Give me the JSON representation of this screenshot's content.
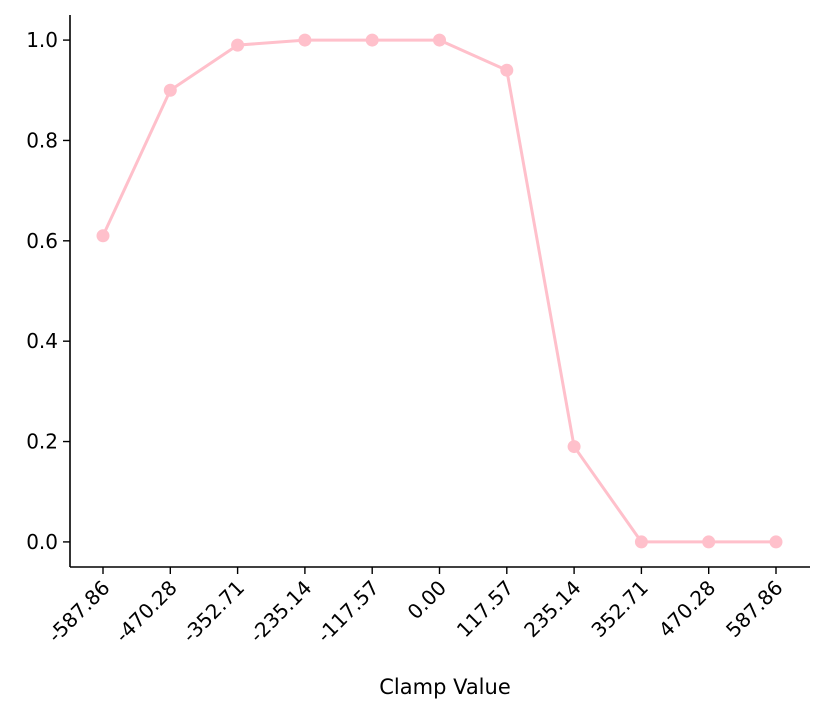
{
  "chart_data": {
    "type": "line",
    "title": "",
    "xlabel": "Clamp Value",
    "ylabel": "",
    "x": [
      "-587.86",
      "-470.28",
      "-352.71",
      "-235.14",
      "-117.57",
      "0.00",
      "117.57",
      "235.14",
      "352.71",
      "470.28",
      "587.86"
    ],
    "series": [
      {
        "color": "#ffc0cb",
        "values": [
          0.61,
          0.9,
          0.99,
          1.0,
          1.0,
          1.0,
          0.94,
          0.19,
          0.0,
          0.0,
          0.0
        ]
      }
    ],
    "yticks": [
      "0.0",
      "0.2",
      "0.4",
      "0.6",
      "0.8",
      "1.0"
    ],
    "ylim": [
      -0.05,
      1.05
    ],
    "grid": false,
    "legend": "none"
  }
}
